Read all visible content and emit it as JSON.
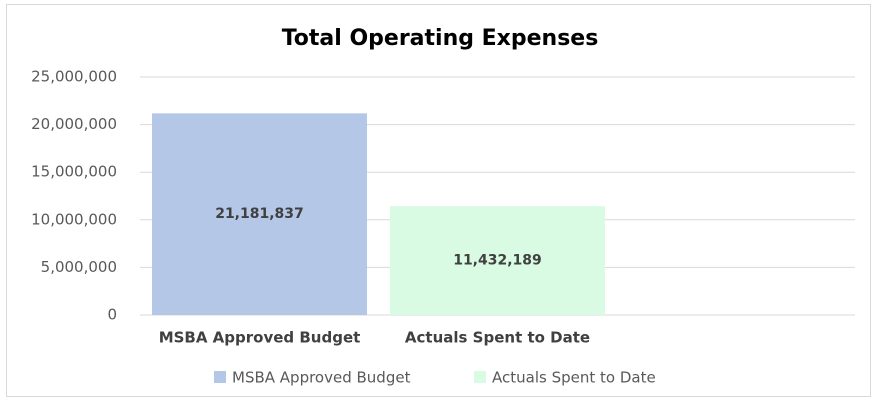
{
  "chart_data": {
    "type": "bar",
    "title": "Total Operating Expenses",
    "categories": [
      "MSBA Approved Budget",
      "Actuals Spent to Date"
    ],
    "values": [
      21181837,
      11432189
    ],
    "value_labels": [
      "21,181,837",
      "11,432,189"
    ],
    "colors": [
      "#b4c7e7",
      "#d9fbe4"
    ],
    "ylim": [
      0,
      25000000
    ],
    "yticks": [
      0,
      {
        "value": 5000000,
        "label": "5,000,000"
      },
      {
        "value": 10000000,
        "label": "10,000,000"
      },
      {
        "value": 15000000,
        "label": "15,000,000"
      },
      {
        "value": 20000000,
        "label": "20,000,000"
      },
      {
        "value": 25000000,
        "label": "25,000,000"
      }
    ],
    "grid": true,
    "legend": "bottom"
  }
}
